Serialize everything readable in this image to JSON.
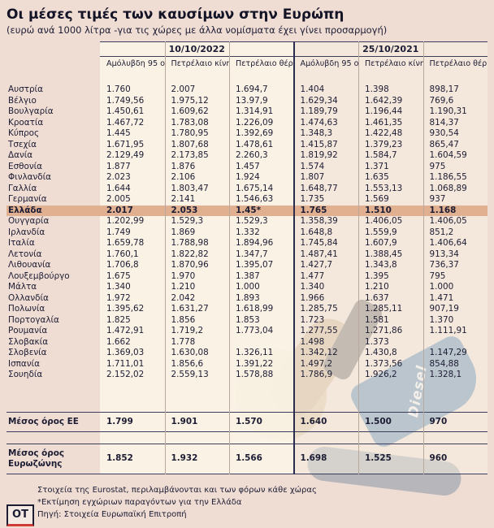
{
  "title": "Οι μέσες τιμές των καυσίμων στην Ευρώπη",
  "subtitle": "(ευρώ ανά 1000 λίτρα -για τις χώρες με άλλα νομίσματα έχει γίνει προσαρμογή)",
  "logo_text": "OT",
  "decor": {
    "pump_label": "Diesel"
  },
  "colors": {
    "background": "#efddd4",
    "text": "#1c1c33",
    "highlight_row": "#e1b091",
    "divider_navy": "#2b2b4e",
    "rule": "#3c3c5c",
    "accent_red": "#d03b36"
  },
  "footnotes": [
    "Στοιχεία της Eurostat, περιλαμβάνονται και των φόρων κάθε χώρας",
    "*Εκτίμηση εγχώριων παραγόντων για την Ελλάδα",
    "Πηγή: Στοιχεία Ευρωπαϊκή Επιτροπή"
  ],
  "chart_data": {
    "type": "table",
    "title": "Οι μέσες τιμές των καυσίμων στην Ευρώπη",
    "subtitle": "(ευρώ ανά 1000 λίτρα -για τις χώρες με άλλα νομίσματα έχει γίνει προσαρμογή)",
    "date_groups": [
      "10/10/2022",
      "25/10/2021"
    ],
    "sub_columns": [
      "Αμόλυβδη 95 οκτανίων",
      "Πετρέλαιο κίνησης",
      "Πετρέλαιο θέρμανσης"
    ],
    "rows": [
      {
        "country": "Αυστρία",
        "highlight": false,
        "values": [
          "1.760",
          "2.007",
          "1.694,7",
          "1.404",
          "1.398",
          "898,17"
        ]
      },
      {
        "country": "Βέλγιο",
        "highlight": false,
        "values": [
          "1.749,56",
          "1.975,12",
          "13.97,9",
          "1.629,34",
          "1.642,39",
          "769,6"
        ]
      },
      {
        "country": "Βουλγαρία",
        "highlight": false,
        "values": [
          "1.450,61",
          "1.609,62",
          "1.314,91",
          "1.189,79",
          "1.196,44",
          "1.190,31"
        ]
      },
      {
        "country": "Κροατία",
        "highlight": false,
        "values": [
          "1.467,72",
          "1.783,08",
          "1.226,09",
          "1.474,63",
          "1.461,35",
          "814,37"
        ]
      },
      {
        "country": "Κύπρος",
        "highlight": false,
        "values": [
          "1.445",
          "1.780,95",
          "1.392,69",
          "1.348,3",
          "1.422,48",
          "930,54"
        ]
      },
      {
        "country": "Τσεχία",
        "highlight": false,
        "values": [
          "1.671,95",
          "1.807,68",
          "1.478,61",
          "1.415,87",
          "1.379,23",
          "865,47"
        ]
      },
      {
        "country": "Δανία",
        "highlight": false,
        "values": [
          "2.129,49",
          "2.173,85",
          "2.260,3",
          "1.819,92",
          "1.584,7",
          "1.604,59"
        ]
      },
      {
        "country": "Εσθονία",
        "highlight": false,
        "values": [
          "1.877",
          "1.876",
          "1.457",
          "1.574",
          "1.371",
          "975"
        ]
      },
      {
        "country": "Φινλανδία",
        "highlight": false,
        "values": [
          "2.023",
          "2.106",
          "1.924",
          "1.807",
          "1.635",
          "1.186,55"
        ]
      },
      {
        "country": "Γαλλία",
        "highlight": false,
        "values": [
          "1.644",
          "1.803,47",
          "1.675,14",
          "1.648,77",
          "1.553,13",
          "1.068,89"
        ]
      },
      {
        "country": "Γερμανία",
        "highlight": false,
        "values": [
          "2.005",
          "2.141",
          "1.546,63",
          "1.735",
          "1.569",
          "937"
        ]
      },
      {
        "country": "Ελλάδα",
        "highlight": true,
        "values": [
          "2.017",
          "2.053",
          "1.45*",
          "1.765",
          "1.510",
          "1.168"
        ]
      },
      {
        "country": "Ουγγαρία",
        "highlight": false,
        "values": [
          "1.202,99",
          "1.529,3",
          "1.529,3",
          "1.358,39",
          "1.406,05",
          "1.406,05"
        ]
      },
      {
        "country": "Ιρλανδία",
        "highlight": false,
        "values": [
          "1.749",
          "1.869",
          "1.332",
          "1.648,8",
          "1.559,9",
          "851,2"
        ]
      },
      {
        "country": "Ιταλία",
        "highlight": false,
        "values": [
          "1.659,78",
          "1.788,98",
          "1.894,96",
          "1.745,84",
          "1.607,9",
          "1.406,64"
        ]
      },
      {
        "country": "Λετονία",
        "highlight": false,
        "values": [
          "1.760,1",
          "1.822,82",
          "1.347,7",
          "1.487,41",
          "1.388,45",
          "913,34"
        ]
      },
      {
        "country": "Λιθουανία",
        "highlight": false,
        "values": [
          "1.706,8",
          "1.870,96",
          "1.395,07",
          "1.427,7",
          "1.343,8",
          "736,37"
        ]
      },
      {
        "country": "Λουξεμβούργο",
        "highlight": false,
        "values": [
          "1.675",
          "1.970",
          "1.387",
          "1.477",
          "1.395",
          "795"
        ]
      },
      {
        "country": "Μάλτα",
        "highlight": false,
        "values": [
          "1.340",
          "1.210",
          "1.000",
          "1.340",
          "1.210",
          "1.000"
        ]
      },
      {
        "country": "Ολλανδία",
        "highlight": false,
        "values": [
          "1.972",
          "2.042",
          "1.893",
          "1.966",
          "1.637",
          "1.471"
        ]
      },
      {
        "country": "Πολωνία",
        "highlight": false,
        "values": [
          "1.395,62",
          "1.631,27",
          "1.618,99",
          "1.285,75",
          "1.285,11",
          "907,19"
        ]
      },
      {
        "country": "Πορτογαλία",
        "highlight": false,
        "values": [
          "1.825",
          "1.856",
          "1.853",
          "1.723",
          "1.581",
          "1.370"
        ]
      },
      {
        "country": "Ρουμανία",
        "highlight": false,
        "values": [
          "1.472,91",
          "1.719,2",
          "1.773,04",
          "1.277,55",
          "1.271,86",
          "1.111,91"
        ]
      },
      {
        "country": "Σλοβακία",
        "highlight": false,
        "values": [
          "1.662",
          "1.778",
          "",
          "1.498",
          "1.373",
          ""
        ]
      },
      {
        "country": "Σλοβενία",
        "highlight": false,
        "values": [
          "1.369,03",
          "1.630,08",
          "1.326,11",
          "1.342,12",
          "1.430,8",
          "1.147,29"
        ]
      },
      {
        "country": "Ισπανία",
        "highlight": false,
        "values": [
          "1.711,01",
          "1.856,6",
          "1.391,22",
          "1.497,2",
          "1.373,56",
          "854,88"
        ]
      },
      {
        "country": "Σουηδία",
        "highlight": false,
        "values": [
          "2.152,02",
          "2.559,13",
          "1.578,88",
          "1.786,9",
          "1.926,2",
          "1.328,1"
        ]
      }
    ],
    "averages": [
      {
        "label": "Μέσος όρος ΕΕ",
        "values": [
          "1.799",
          "1.901",
          "1.570",
          "1.640",
          "1.500",
          "970"
        ]
      },
      {
        "label": "Μέσος όρος Ευρωζώνης",
        "values": [
          "1.852",
          "1.932",
          "1.566",
          "1.698",
          "1.525",
          "960"
        ]
      }
    ]
  }
}
